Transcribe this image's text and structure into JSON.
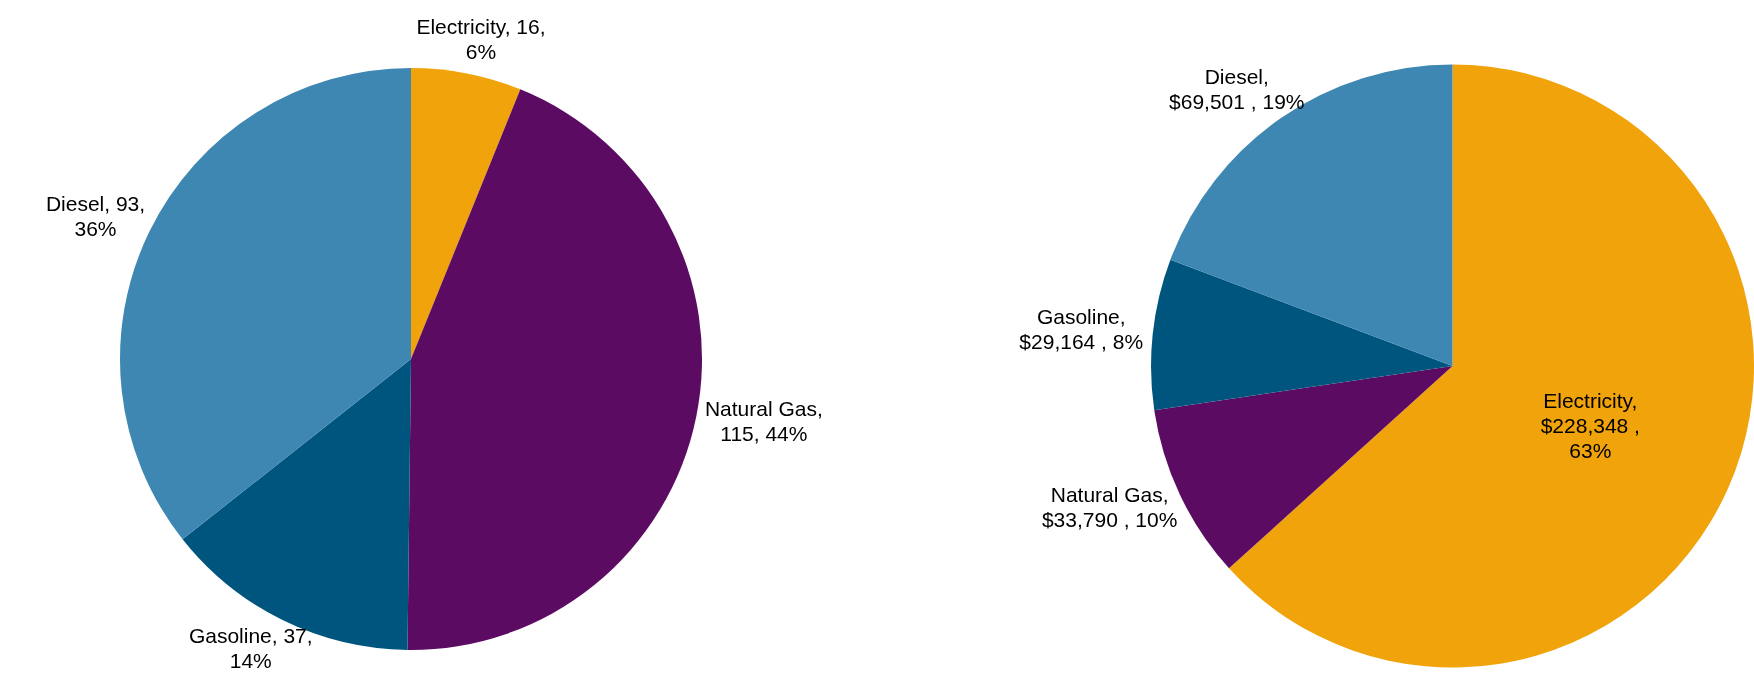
{
  "chart_data": [
    {
      "type": "pie",
      "categories": [
        "Electricity",
        "Natural Gas",
        "Gasoline",
        "Diesel"
      ],
      "values": [
        16,
        115,
        37,
        93
      ],
      "colors": [
        "#f0a30a",
        "#5c0b62",
        "#00557f",
        "#3e87b3"
      ],
      "value_labels": [
        ", 16, 6%",
        ", 115, 44%",
        ", 37, 14%",
        ", 93, 36%"
      ],
      "legend": false
    },
    {
      "type": "pie",
      "categories": [
        "Electricity",
        "Natural Gas",
        "Gasoline",
        "Diesel"
      ],
      "values": [
        228348,
        33790,
        29164,
        69501
      ],
      "colors": [
        "#f0a30a",
        "#5c0b62",
        "#00557f",
        "#3e87b3"
      ],
      "value_labels": [
        ", $228,348 , 63%",
        ", $33,790 , 10%",
        ", $29,164 , 8%",
        ", $69,501 , 19%"
      ],
      "legend": false
    }
  ]
}
